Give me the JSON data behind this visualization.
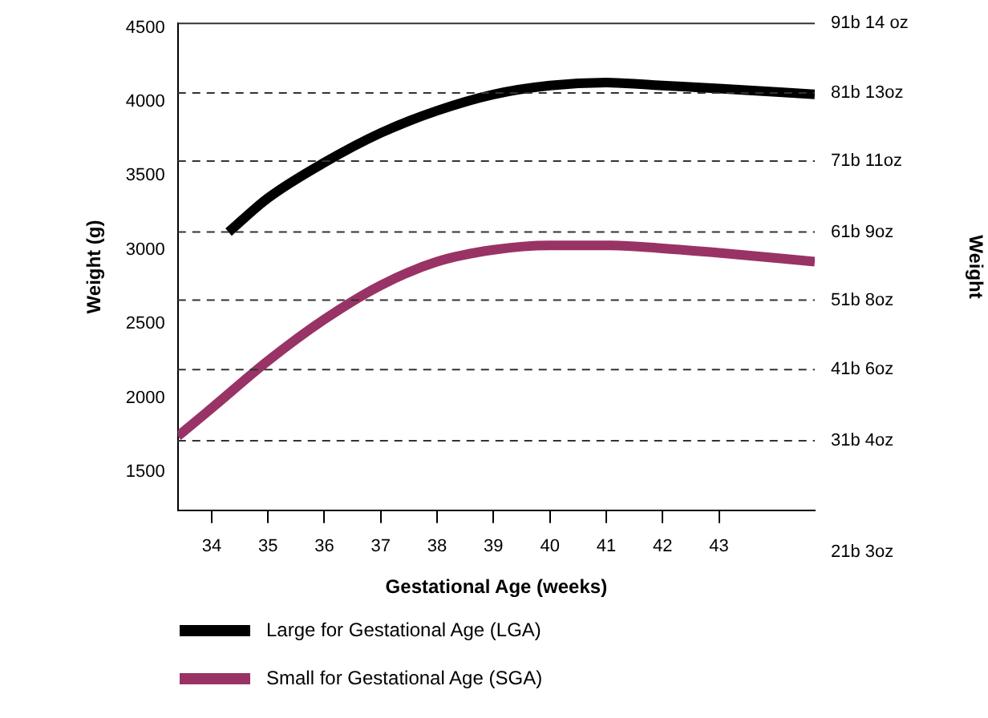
{
  "chart_data": {
    "type": "line",
    "xlabel": "Gestational Age (weeks)",
    "ylabel": "Weight (g)",
    "xlim": [
      33.4,
      44.7
    ],
    "xticks": [
      34,
      35,
      36,
      37,
      38,
      39,
      40,
      41,
      42,
      43
    ],
    "ylim": [
      1240,
      4530
    ],
    "yticks": [
      1500,
      2000,
      2500,
      3000,
      3500,
      4000,
      4500
    ],
    "ref_lines": [
      {
        "axis": "y",
        "value": 4530,
        "label": "91b 14 oz"
      },
      {
        "axis": "y",
        "value": 4060,
        "label": "81b 13oz",
        "line_style": "dashed"
      },
      {
        "axis": "y",
        "value": 3600,
        "label": "71b 11oz",
        "line_style": "dashed"
      },
      {
        "axis": "y",
        "value": 3120,
        "label": "61b 9oz",
        "line_style": "dashed"
      },
      {
        "axis": "y",
        "value": 2660,
        "label": "51b 8oz",
        "line_style": "dashed"
      },
      {
        "axis": "y",
        "value": 2190,
        "label": "41b 6oz",
        "line_style": "dashed"
      },
      {
        "axis": "y",
        "value": 1710,
        "label": "31b 4oz",
        "line_style": "dashed"
      }
    ],
    "annotations": [
      "21b 3oz",
      "Weight"
    ],
    "legend": "bottom",
    "marker": "none",
    "line_style": "solid",
    "series": [
      {
        "name": "Large for Gestational Age (LGA)",
        "color": "#000000",
        "x": [
          34.3,
          35,
          36,
          37,
          38,
          39,
          40,
          41,
          42,
          43,
          44.7
        ],
        "values": [
          3120,
          3350,
          3590,
          3790,
          3940,
          4050,
          4110,
          4130,
          4110,
          4090,
          4050
        ]
      },
      {
        "name": "Small for Gestational Age (SGA)",
        "color": "#993366",
        "x": [
          33.4,
          34,
          35,
          36,
          37,
          38,
          39,
          40,
          41,
          42,
          43,
          44.7
        ],
        "values": [
          1740,
          1930,
          2250,
          2530,
          2760,
          2920,
          3000,
          3030,
          3030,
          3010,
          2980,
          2920
        ]
      }
    ]
  }
}
